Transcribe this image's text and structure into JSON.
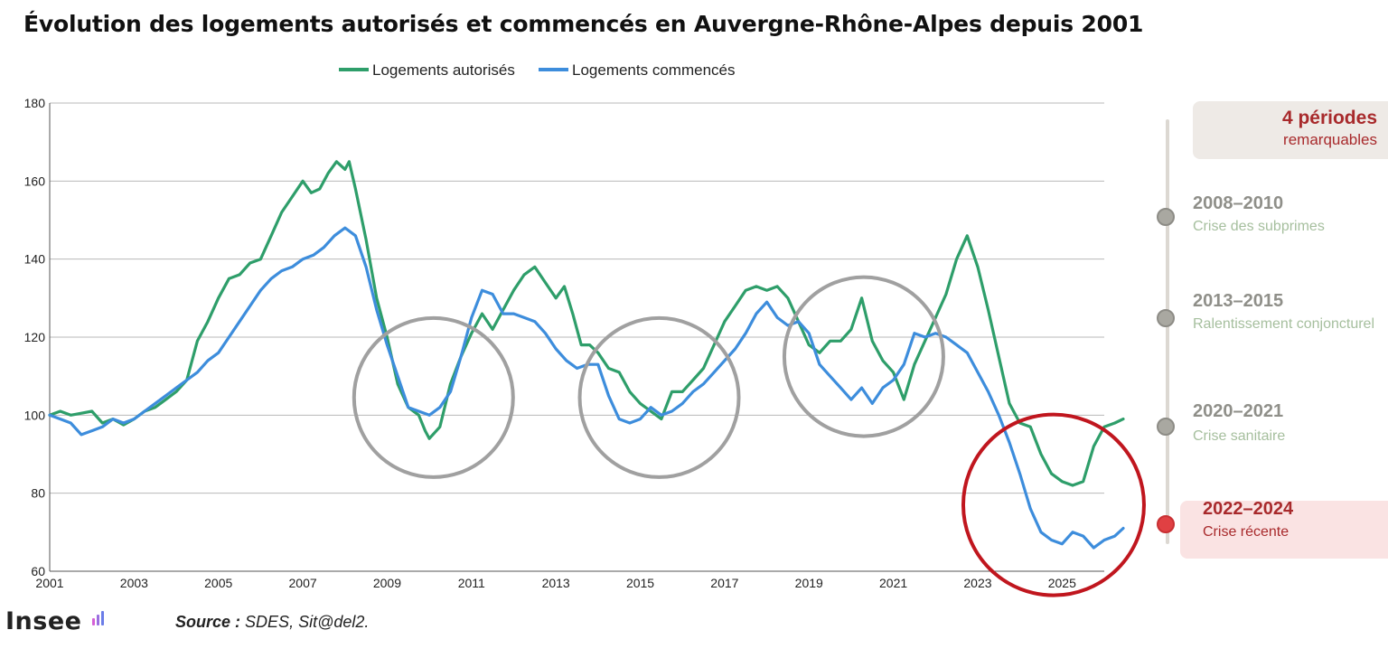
{
  "title": "Évolution des logements autorisés et commencés en Auvergne-Rhône-Alpes depuis 2001",
  "source_label": "Source :",
  "source_text": "SDES, Sit@del2.",
  "logo_text": "Insee",
  "side_panel": {
    "header_big": "4 périodes",
    "header_small": "remarquables",
    "periods": [
      {
        "years": "2008–2010",
        "label": "Crise des subprimes"
      },
      {
        "years": "2013–2015",
        "label": "Ralentissement conjoncturel"
      },
      {
        "years": "2020–2021",
        "label": "Crise sanitaire"
      },
      {
        "years": "2022–2024",
        "label": "Crise récente"
      }
    ]
  },
  "colors": {
    "autorises": "#2e9e6a",
    "commences": "#3d8ddc",
    "circle_grey": "#a0a0a0",
    "circle_red": "#c0161e",
    "grid": "#b8b8b8"
  },
  "chart_data": {
    "type": "line",
    "title": "Évolution des logements autorisés et commencés en Auvergne-Rhône-Alpes depuis 2001",
    "xlabel": "",
    "ylabel": "",
    "xlim": [
      2001,
      2026
    ],
    "ylim": [
      60,
      180
    ],
    "x_ticks": [
      "2001",
      "2003",
      "2005",
      "2007",
      "2009",
      "2011",
      "2013",
      "2015",
      "2017",
      "2019",
      "2021",
      "2023",
      "2025"
    ],
    "y_ticks": [
      "60",
      "80",
      "100",
      "120",
      "140",
      "160",
      "180"
    ],
    "legend_placement": "top-center",
    "grid": "horizontal",
    "series": [
      {
        "name": "Logements autorisés",
        "points": [
          [
            2001.0,
            100
          ],
          [
            2001.25,
            101
          ],
          [
            2001.5,
            100
          ],
          [
            2001.75,
            100.5
          ],
          [
            2002.0,
            101
          ],
          [
            2002.25,
            98
          ],
          [
            2002.5,
            99
          ],
          [
            2002.75,
            97.5
          ],
          [
            2003.0,
            99
          ],
          [
            2003.25,
            101
          ],
          [
            2003.5,
            102
          ],
          [
            2003.75,
            104
          ],
          [
            2004.0,
            106
          ],
          [
            2004.25,
            109
          ],
          [
            2004.5,
            119
          ],
          [
            2004.75,
            124
          ],
          [
            2005.0,
            130
          ],
          [
            2005.25,
            135
          ],
          [
            2005.5,
            136
          ],
          [
            2005.75,
            139
          ],
          [
            2006.0,
            140
          ],
          [
            2006.25,
            146
          ],
          [
            2006.5,
            152
          ],
          [
            2006.75,
            156
          ],
          [
            2007.0,
            160
          ],
          [
            2007.2,
            157
          ],
          [
            2007.4,
            158
          ],
          [
            2007.6,
            162
          ],
          [
            2007.8,
            165
          ],
          [
            2008.0,
            163
          ],
          [
            2008.1,
            165
          ],
          [
            2008.25,
            158
          ],
          [
            2008.5,
            145
          ],
          [
            2008.75,
            130
          ],
          [
            2009.0,
            120
          ],
          [
            2009.25,
            108
          ],
          [
            2009.5,
            102
          ],
          [
            2009.75,
            100
          ],
          [
            2009.9,
            96
          ],
          [
            2010.0,
            94
          ],
          [
            2010.25,
            97
          ],
          [
            2010.5,
            108
          ],
          [
            2010.75,
            115
          ],
          [
            2011.0,
            121
          ],
          [
            2011.25,
            126
          ],
          [
            2011.5,
            122
          ],
          [
            2011.75,
            127
          ],
          [
            2012.0,
            132
          ],
          [
            2012.25,
            136
          ],
          [
            2012.5,
            138
          ],
          [
            2012.75,
            134
          ],
          [
            2013.0,
            130
          ],
          [
            2013.2,
            133
          ],
          [
            2013.4,
            126
          ],
          [
            2013.6,
            118
          ],
          [
            2013.8,
            118
          ],
          [
            2014.0,
            116
          ],
          [
            2014.25,
            112
          ],
          [
            2014.5,
            111
          ],
          [
            2014.75,
            106
          ],
          [
            2015.0,
            103
          ],
          [
            2015.25,
            101
          ],
          [
            2015.5,
            99
          ],
          [
            2015.75,
            106
          ],
          [
            2016.0,
            106
          ],
          [
            2016.25,
            109
          ],
          [
            2016.5,
            112
          ],
          [
            2016.75,
            118
          ],
          [
            2017.0,
            124
          ],
          [
            2017.25,
            128
          ],
          [
            2017.5,
            132
          ],
          [
            2017.75,
            133
          ],
          [
            2018.0,
            132
          ],
          [
            2018.25,
            133
          ],
          [
            2018.5,
            130
          ],
          [
            2018.75,
            124
          ],
          [
            2019.0,
            118
          ],
          [
            2019.25,
            116
          ],
          [
            2019.5,
            119
          ],
          [
            2019.75,
            119
          ],
          [
            2020.0,
            122
          ],
          [
            2020.25,
            130
          ],
          [
            2020.5,
            119
          ],
          [
            2020.75,
            114
          ],
          [
            2021.0,
            111
          ],
          [
            2021.25,
            104
          ],
          [
            2021.5,
            113
          ],
          [
            2021.75,
            119
          ],
          [
            2022.0,
            125
          ],
          [
            2022.25,
            131
          ],
          [
            2022.5,
            140
          ],
          [
            2022.75,
            146
          ],
          [
            2023.0,
            138
          ],
          [
            2023.25,
            127
          ],
          [
            2023.5,
            115
          ],
          [
            2023.75,
            103
          ],
          [
            2024.0,
            98
          ],
          [
            2024.25,
            97
          ],
          [
            2024.5,
            90
          ],
          [
            2024.75,
            85
          ],
          [
            2025.0,
            83
          ],
          [
            2025.25,
            82
          ],
          [
            2025.5,
            83
          ],
          [
            2025.75,
            92
          ],
          [
            2026.0,
            97
          ],
          [
            2026.25,
            98
          ],
          [
            2026.45,
            99
          ]
        ]
      },
      {
        "name": "Logements commencés",
        "points": [
          [
            2001.0,
            100
          ],
          [
            2001.25,
            99
          ],
          [
            2001.5,
            98
          ],
          [
            2001.75,
            95
          ],
          [
            2002.0,
            96
          ],
          [
            2002.25,
            97
          ],
          [
            2002.5,
            99
          ],
          [
            2002.75,
            98
          ],
          [
            2003.0,
            99
          ],
          [
            2003.25,
            101
          ],
          [
            2003.5,
            103
          ],
          [
            2003.75,
            105
          ],
          [
            2004.0,
            107
          ],
          [
            2004.25,
            109
          ],
          [
            2004.5,
            111
          ],
          [
            2004.75,
            114
          ],
          [
            2005.0,
            116
          ],
          [
            2005.25,
            120
          ],
          [
            2005.5,
            124
          ],
          [
            2005.75,
            128
          ],
          [
            2006.0,
            132
          ],
          [
            2006.25,
            135
          ],
          [
            2006.5,
            137
          ],
          [
            2006.75,
            138
          ],
          [
            2007.0,
            140
          ],
          [
            2007.25,
            141
          ],
          [
            2007.5,
            143
          ],
          [
            2007.75,
            146
          ],
          [
            2008.0,
            148
          ],
          [
            2008.25,
            146
          ],
          [
            2008.5,
            138
          ],
          [
            2008.75,
            127
          ],
          [
            2009.0,
            118
          ],
          [
            2009.25,
            110
          ],
          [
            2009.5,
            102
          ],
          [
            2009.75,
            101
          ],
          [
            2010.0,
            100
          ],
          [
            2010.25,
            102
          ],
          [
            2010.5,
            106
          ],
          [
            2010.75,
            115
          ],
          [
            2011.0,
            125
          ],
          [
            2011.25,
            132
          ],
          [
            2011.5,
            131
          ],
          [
            2011.75,
            126
          ],
          [
            2012.0,
            126
          ],
          [
            2012.25,
            125
          ],
          [
            2012.5,
            124
          ],
          [
            2012.75,
            121
          ],
          [
            2013.0,
            117
          ],
          [
            2013.25,
            114
          ],
          [
            2013.5,
            112
          ],
          [
            2013.75,
            113
          ],
          [
            2014.0,
            113
          ],
          [
            2014.25,
            105
          ],
          [
            2014.5,
            99
          ],
          [
            2014.75,
            98
          ],
          [
            2015.0,
            99
          ],
          [
            2015.25,
            102
          ],
          [
            2015.5,
            100
          ],
          [
            2015.75,
            101
          ],
          [
            2016.0,
            103
          ],
          [
            2016.25,
            106
          ],
          [
            2016.5,
            108
          ],
          [
            2016.75,
            111
          ],
          [
            2017.0,
            114
          ],
          [
            2017.25,
            117
          ],
          [
            2017.5,
            121
          ],
          [
            2017.75,
            126
          ],
          [
            2018.0,
            129
          ],
          [
            2018.25,
            125
          ],
          [
            2018.5,
            123
          ],
          [
            2018.75,
            124
          ],
          [
            2019.0,
            121
          ],
          [
            2019.25,
            113
          ],
          [
            2019.5,
            110
          ],
          [
            2019.75,
            107
          ],
          [
            2020.0,
            104
          ],
          [
            2020.25,
            107
          ],
          [
            2020.5,
            103
          ],
          [
            2020.75,
            107
          ],
          [
            2021.0,
            109
          ],
          [
            2021.25,
            113
          ],
          [
            2021.5,
            121
          ],
          [
            2021.75,
            120
          ],
          [
            2022.0,
            121
          ],
          [
            2022.25,
            120
          ],
          [
            2022.5,
            118
          ],
          [
            2022.75,
            116
          ],
          [
            2023.0,
            111
          ],
          [
            2023.25,
            106
          ],
          [
            2023.5,
            100
          ],
          [
            2023.75,
            93
          ],
          [
            2024.0,
            85
          ],
          [
            2024.25,
            76
          ],
          [
            2024.5,
            70
          ],
          [
            2024.75,
            68
          ],
          [
            2025.0,
            67
          ],
          [
            2025.25,
            70
          ],
          [
            2025.5,
            69
          ],
          [
            2025.75,
            66
          ],
          [
            2026.0,
            68
          ],
          [
            2026.25,
            69
          ],
          [
            2026.45,
            71
          ]
        ]
      }
    ],
    "highlight_periods": [
      {
        "center": [
          2010.1,
          104.5
        ],
        "color": "grey"
      },
      {
        "center": [
          2015.45,
          104.5
        ],
        "color": "grey"
      },
      {
        "center": [
          2020.3,
          115.0
        ],
        "color": "grey"
      },
      {
        "center": [
          2024.8,
          77.0
        ],
        "color": "red"
      }
    ]
  }
}
